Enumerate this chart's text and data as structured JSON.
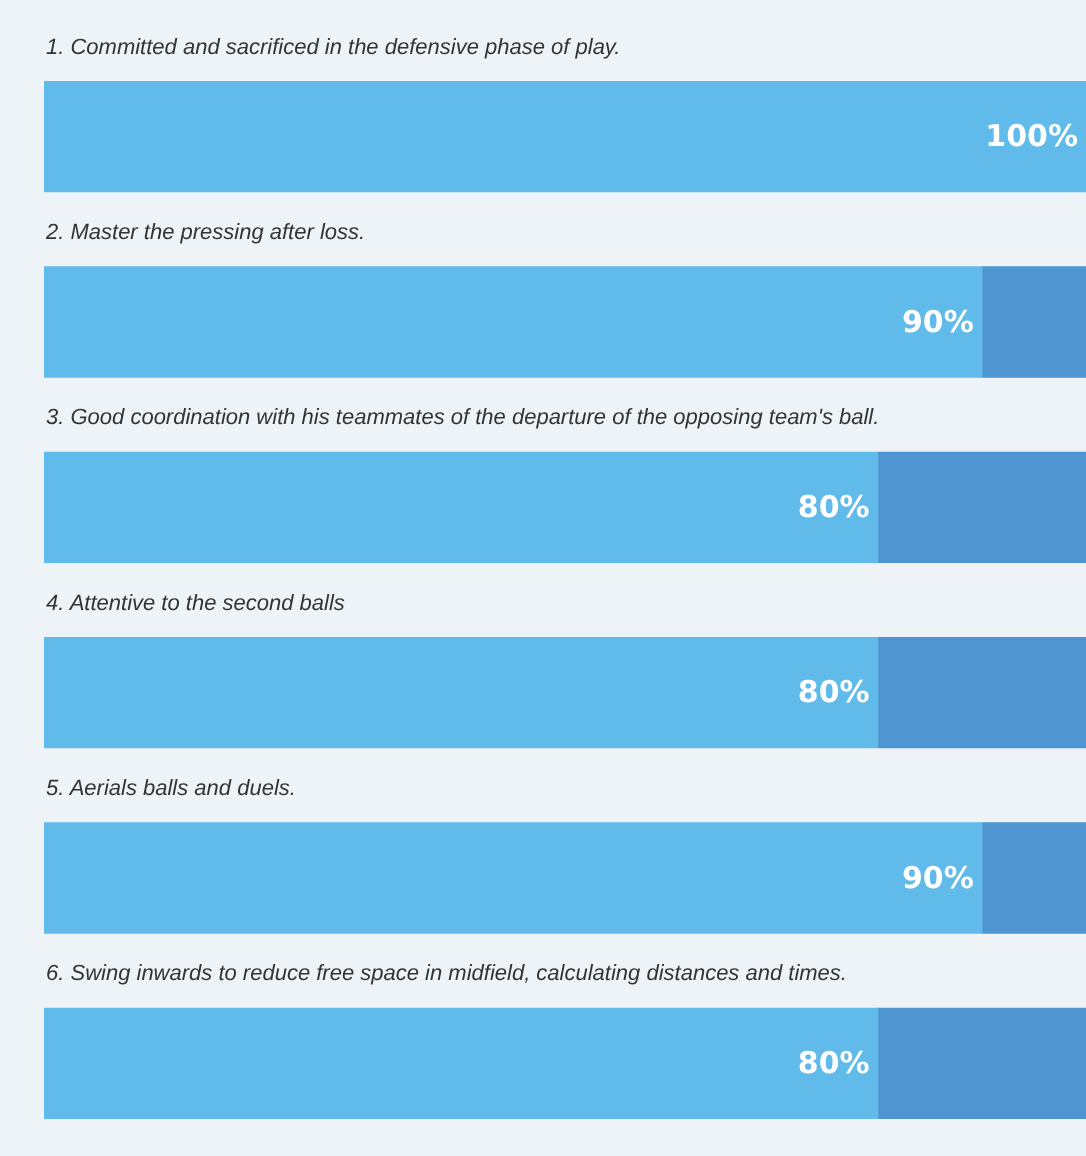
{
  "chart_data": {
    "type": "bar",
    "orientation": "horizontal",
    "stacked": true,
    "categories": [
      "1. Committed and sacrificed in the defensive phase of play.",
      "2. Master the pressing after loss.",
      "3. Good coordination with his teammates of the departure of the opposing team's ball.",
      "4. Attentive to the second balls",
      "5. Aerials balls and duels.",
      "6. Swing inwards to reduce free space in midfield, calculating distances and times."
    ],
    "series": [
      {
        "color": "#61bbea",
        "values": [
          100,
          90,
          80,
          80,
          90,
          80
        ],
        "value_labels": [
          "100%",
          "90%",
          "80%",
          "80%",
          "90%",
          "80%"
        ]
      },
      {
        "color": "#4f95d1",
        "values": [
          0,
          10,
          20,
          20,
          10,
          20
        ]
      }
    ],
    "xlim": [
      0,
      100
    ],
    "tick_labels": false,
    "legend": false
  }
}
